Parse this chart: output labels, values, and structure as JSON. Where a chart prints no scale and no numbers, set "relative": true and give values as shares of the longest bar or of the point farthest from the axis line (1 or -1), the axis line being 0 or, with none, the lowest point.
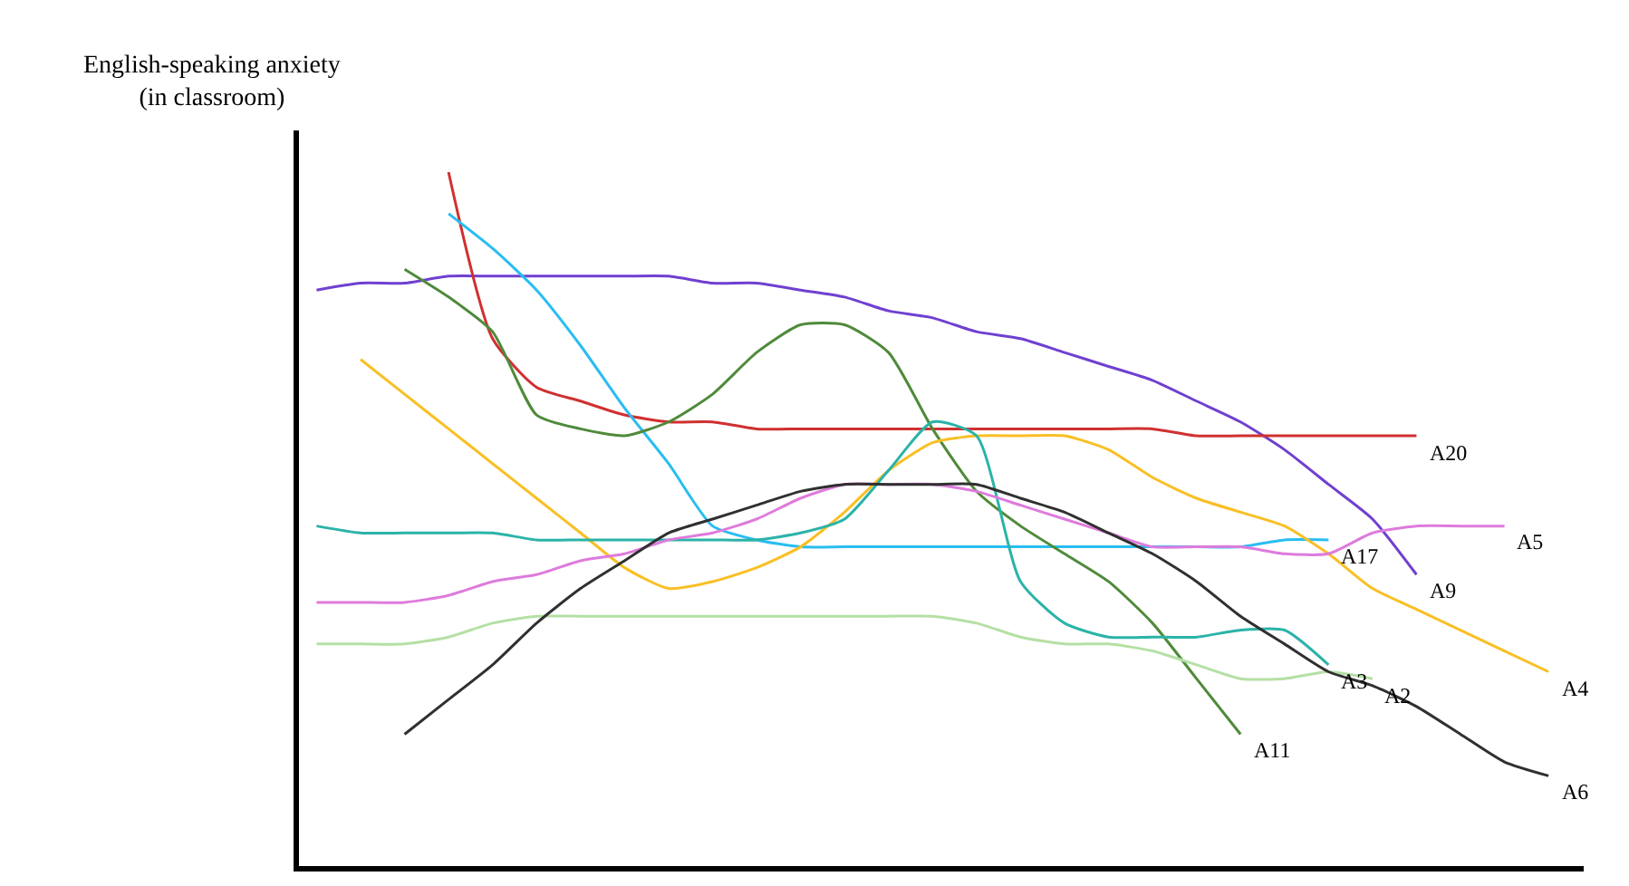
{
  "chart_data": {
    "type": "line",
    "relative": true,
    "ylabel": "English-speaking anxiety\n(in classroom)",
    "legend": false,
    "marker": "none",
    "line_style": "solid",
    "categories": [
      null,
      null,
      null,
      null,
      null,
      null,
      null,
      null,
      null,
      null,
      null,
      null,
      null,
      null,
      null,
      null,
      null,
      null,
      null,
      null,
      null,
      null,
      null,
      null,
      null,
      null,
      null,
      null,
      null
    ],
    "series": [
      {
        "name": "A9",
        "color": "#7040d0",
        "values": [
          0.83,
          0.84,
          0.84,
          0.85,
          0.85,
          0.85,
          0.85,
          0.85,
          0.85,
          0.84,
          0.84,
          0.83,
          0.82,
          0.8,
          0.79,
          0.77,
          0.76,
          0.74,
          0.72,
          0.7,
          0.67,
          0.64,
          0.6,
          0.55,
          0.5,
          0.42,
          null,
          null,
          null
        ]
      },
      {
        "name": "A20",
        "color": "#d03030",
        "values": [
          null,
          null,
          null,
          1.0,
          0.76,
          0.69,
          0.67,
          0.65,
          0.64,
          0.64,
          0.63,
          0.63,
          0.63,
          0.63,
          0.63,
          0.63,
          0.63,
          0.63,
          0.63,
          0.63,
          0.62,
          0.62,
          0.62,
          0.62,
          0.62,
          0.62,
          null,
          null,
          null
        ]
      },
      {
        "name": "A17",
        "color": "#29bdf2",
        "values": [
          null,
          null,
          null,
          0.94,
          0.89,
          0.83,
          0.75,
          0.66,
          0.58,
          0.49,
          0.47,
          0.46,
          0.46,
          0.46,
          0.46,
          0.46,
          0.46,
          0.46,
          0.46,
          0.46,
          0.46,
          0.46,
          0.47,
          0.47,
          null,
          null,
          null,
          null,
          null
        ]
      },
      {
        "name": "A11",
        "color": "#4f8a3a",
        "values": [
          null,
          null,
          0.86,
          0.82,
          0.77,
          0.65,
          0.63,
          0.62,
          0.64,
          0.68,
          0.74,
          0.78,
          0.78,
          0.74,
          0.63,
          0.54,
          0.49,
          0.45,
          0.41,
          0.35,
          0.27,
          0.19,
          null,
          null,
          null,
          null,
          null,
          null,
          null
        ]
      },
      {
        "name": "A4",
        "color": "#f9bf24",
        "values": [
          null,
          0.73,
          0.68,
          0.63,
          0.58,
          0.53,
          0.48,
          0.43,
          0.4,
          0.41,
          0.43,
          0.46,
          0.51,
          0.57,
          0.61,
          0.62,
          0.62,
          0.62,
          0.6,
          0.56,
          0.53,
          0.51,
          0.49,
          0.45,
          0.4,
          0.37,
          0.34,
          0.31,
          0.28
        ]
      },
      {
        "name": "A3",
        "color": "#2bb3a8",
        "values": [
          0.49,
          0.48,
          0.48,
          0.48,
          0.48,
          0.47,
          0.47,
          0.47,
          0.47,
          0.47,
          0.47,
          0.48,
          0.5,
          0.57,
          0.64,
          0.62,
          0.41,
          0.35,
          0.33,
          0.33,
          0.33,
          0.34,
          0.34,
          0.29,
          null,
          null,
          null,
          null,
          null
        ]
      },
      {
        "name": "A5",
        "color": "#de7bdc",
        "values": [
          0.38,
          0.38,
          0.38,
          0.39,
          0.41,
          0.42,
          0.44,
          0.45,
          0.47,
          0.48,
          0.5,
          0.53,
          0.55,
          0.55,
          0.55,
          0.54,
          0.52,
          0.5,
          0.48,
          0.46,
          0.46,
          0.46,
          0.45,
          0.45,
          0.48,
          0.49,
          0.49,
          0.49,
          null
        ]
      },
      {
        "name": "A2",
        "color": "#b5e0a5",
        "values": [
          0.32,
          0.32,
          0.32,
          0.33,
          0.35,
          0.36,
          0.36,
          0.36,
          0.36,
          0.36,
          0.36,
          0.36,
          0.36,
          0.36,
          0.36,
          0.35,
          0.33,
          0.32,
          0.32,
          0.31,
          0.29,
          0.27,
          0.27,
          0.28,
          0.27,
          null,
          null,
          null,
          null
        ]
      },
      {
        "name": "A6",
        "color": "#303030",
        "values": [
          null,
          null,
          0.19,
          0.24,
          0.29,
          0.35,
          0.4,
          0.44,
          0.48,
          0.5,
          0.52,
          0.54,
          0.55,
          0.55,
          0.55,
          0.55,
          0.53,
          0.51,
          0.48,
          0.45,
          0.41,
          0.36,
          0.32,
          0.28,
          0.26,
          0.23,
          0.19,
          0.15,
          0.13
        ]
      }
    ]
  }
}
